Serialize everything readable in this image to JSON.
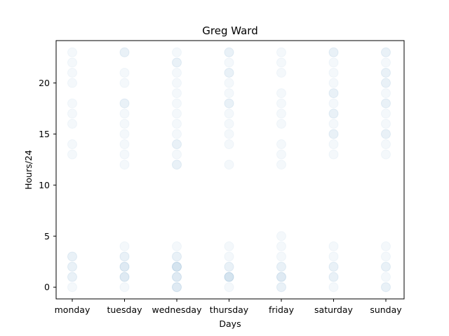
{
  "chart_data": {
    "type": "scatter",
    "title": "Greg Ward",
    "xlabel": "Days",
    "ylabel": "Hours/24",
    "categories": [
      "monday",
      "tuesday",
      "wednesday",
      "thursday",
      "friday",
      "saturday",
      "sunday"
    ],
    "yticks": [
      0,
      5,
      10,
      15,
      20
    ],
    "ylim": [
      -1.15,
      24.15
    ],
    "grid": false,
    "marker_color": "#1f77b4",
    "points": [
      {
        "x": "monday",
        "hours": [
          0,
          1,
          1,
          2,
          2,
          3,
          3,
          13,
          14,
          16,
          17,
          18,
          20,
          21,
          22,
          23
        ]
      },
      {
        "x": "tuesday",
        "hours": [
          0,
          1,
          1,
          1,
          2,
          2,
          2,
          3,
          3,
          4,
          12,
          13,
          14,
          15,
          16,
          17,
          18,
          18,
          20,
          21,
          23,
          23
        ]
      },
      {
        "x": "wednesday",
        "hours": [
          0,
          0,
          0,
          1,
          1,
          1,
          2,
          2,
          2,
          2,
          3,
          3,
          4,
          12,
          12,
          13,
          14,
          14,
          15,
          16,
          17,
          18,
          19,
          20,
          21,
          22,
          22,
          23
        ]
      },
      {
        "x": "thursday",
        "hours": [
          0,
          1,
          1,
          1,
          1,
          2,
          2,
          3,
          4,
          12,
          14,
          15,
          16,
          17,
          18,
          18,
          19,
          20,
          21,
          21,
          22,
          23,
          23
        ]
      },
      {
        "x": "friday",
        "hours": [
          0,
          0,
          1,
          1,
          1,
          2,
          2,
          3,
          4,
          5,
          12,
          13,
          14,
          16,
          17,
          18,
          19,
          21,
          22,
          23
        ]
      },
      {
        "x": "saturday",
        "hours": [
          0,
          1,
          1,
          2,
          2,
          3,
          4,
          13,
          14,
          15,
          15,
          16,
          17,
          17,
          18,
          19,
          19,
          20,
          21,
          22,
          23,
          23
        ]
      },
      {
        "x": "sunday",
        "hours": [
          0,
          0,
          1,
          2,
          2,
          3,
          4,
          13,
          14,
          15,
          15,
          16,
          17,
          18,
          18,
          19,
          20,
          20,
          21,
          21,
          22,
          23,
          23
        ]
      }
    ]
  }
}
